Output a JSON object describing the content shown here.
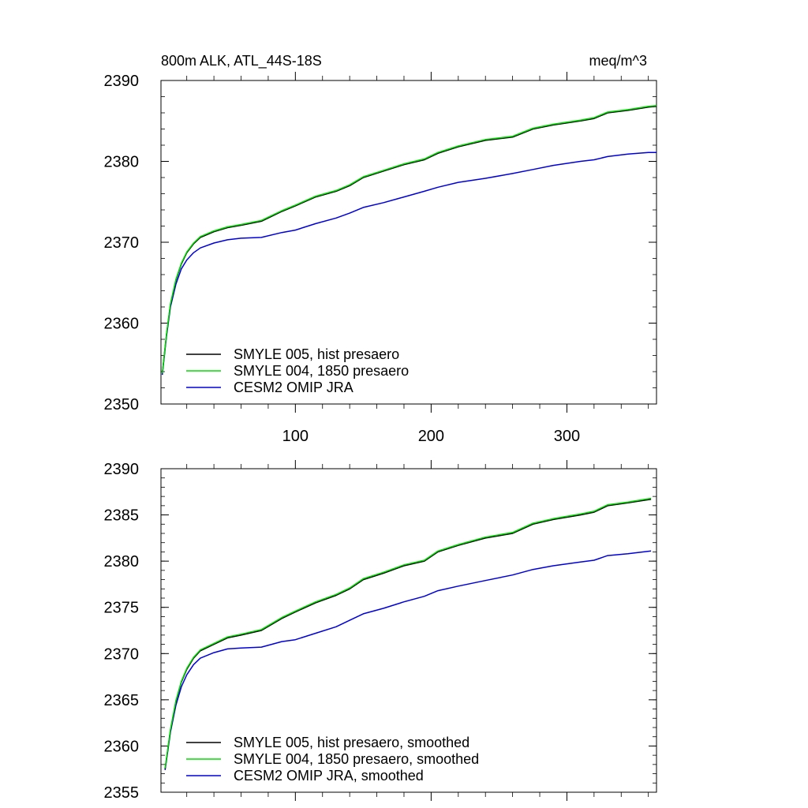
{
  "header": {
    "left": "800m ALK, ATL_44S-18S",
    "right": "meq/m^3"
  },
  "colors": {
    "SMYLE 005": "#000000",
    "SMYLE 004": "#00dd00",
    "CESM2": "#0000dd"
  },
  "chart_data": [
    {
      "type": "line",
      "title": "800m ALK, ATL_44S-18S",
      "unit": "meq/m^3",
      "xlim": [
        1,
        366
      ],
      "ylim": [
        2350,
        2390
      ],
      "xticks": [
        100,
        200,
        300
      ],
      "xtick_labels": [
        "100",
        "200",
        "300"
      ],
      "yticks": [
        2350,
        2360,
        2370,
        2380,
        2390
      ],
      "ytick_labels": [
        "2350",
        "2360",
        "2370",
        "2380",
        "2390"
      ],
      "legend_position": "bottom-left",
      "grid": false,
      "series": [
        {
          "name": "SMYLE 005, hist presaero",
          "color": "#000000",
          "x": [
            2,
            5,
            8,
            12,
            16,
            20,
            25,
            30,
            40,
            50,
            60,
            75,
            90,
            100,
            115,
            130,
            140,
            150,
            165,
            180,
            195,
            205,
            220,
            240,
            260,
            275,
            290,
            310,
            320,
            330,
            345,
            360,
            366
          ],
          "values": [
            2353.8,
            2358.5,
            2362.3,
            2365.3,
            2367.3,
            2368.7,
            2369.8,
            2370.6,
            2371.3,
            2371.8,
            2372.1,
            2372.6,
            2373.8,
            2374.5,
            2375.6,
            2376.3,
            2377.0,
            2378.0,
            2378.8,
            2379.6,
            2380.2,
            2381.0,
            2381.8,
            2382.6,
            2383.0,
            2384.0,
            2384.5,
            2385.0,
            2385.3,
            2386.0,
            2386.3,
            2386.7,
            2386.8
          ]
        },
        {
          "name": "SMYLE 004, 1850 presaero",
          "color": "#00dd00",
          "x": [
            2,
            5,
            8,
            12,
            16,
            20,
            25,
            30,
            40,
            50,
            60,
            75,
            90,
            100,
            115,
            130,
            140,
            150,
            165,
            180,
            195,
            205,
            220,
            240,
            260,
            275,
            290,
            310,
            320,
            330,
            345,
            360,
            366
          ],
          "values": [
            2353.8,
            2358.6,
            2362.4,
            2365.4,
            2367.4,
            2368.8,
            2369.9,
            2370.7,
            2371.4,
            2371.9,
            2372.2,
            2372.7,
            2373.9,
            2374.6,
            2375.7,
            2376.4,
            2377.1,
            2378.1,
            2378.9,
            2379.7,
            2380.3,
            2381.1,
            2381.9,
            2382.7,
            2383.1,
            2384.1,
            2384.6,
            2385.1,
            2385.4,
            2386.1,
            2386.4,
            2386.8,
            2386.9
          ]
        },
        {
          "name": "CESM2 OMIP JRA",
          "color": "#0000dd",
          "x": [
            2,
            5,
            8,
            12,
            16,
            20,
            25,
            30,
            40,
            50,
            60,
            75,
            90,
            100,
            115,
            130,
            140,
            150,
            165,
            180,
            195,
            205,
            220,
            240,
            260,
            275,
            290,
            310,
            320,
            330,
            345,
            360,
            366
          ],
          "values": [
            2353.6,
            2358.3,
            2362.0,
            2364.8,
            2366.7,
            2367.8,
            2368.7,
            2369.3,
            2369.9,
            2370.3,
            2370.5,
            2370.6,
            2371.2,
            2371.5,
            2372.3,
            2373.0,
            2373.6,
            2374.3,
            2374.9,
            2375.6,
            2376.3,
            2376.8,
            2377.4,
            2377.9,
            2378.5,
            2379.0,
            2379.5,
            2380.0,
            2380.2,
            2380.6,
            2380.9,
            2381.1,
            2381.1
          ]
        }
      ]
    },
    {
      "type": "line",
      "xlim": [
        1,
        366
      ],
      "ylim": [
        2355,
        2390
      ],
      "xticks": [
        100,
        200,
        300
      ],
      "xtick_labels": [],
      "yticks": [
        2355,
        2360,
        2365,
        2370,
        2375,
        2380,
        2385,
        2390
      ],
      "ytick_labels": [
        "2355",
        "2360",
        "2365",
        "2370",
        "2375",
        "2380",
        "2385",
        "2390"
      ],
      "legend_position": "bottom-left",
      "grid": false,
      "series": [
        {
          "name": "SMYLE 005, hist presaero, smoothed",
          "color": "#000000",
          "x": [
            4,
            8,
            12,
            16,
            20,
            25,
            30,
            40,
            50,
            60,
            75,
            90,
            100,
            115,
            130,
            140,
            150,
            165,
            180,
            195,
            205,
            220,
            240,
            260,
            275,
            290,
            310,
            320,
            330,
            345,
            362
          ],
          "values": [
            2357.5,
            2361.7,
            2364.8,
            2366.9,
            2368.3,
            2369.5,
            2370.3,
            2371.0,
            2371.7,
            2372.0,
            2372.5,
            2373.8,
            2374.5,
            2375.5,
            2376.3,
            2377.0,
            2378.0,
            2378.7,
            2379.5,
            2380.0,
            2381.0,
            2381.7,
            2382.5,
            2383.0,
            2384.0,
            2384.5,
            2385.0,
            2385.3,
            2386.0,
            2386.3,
            2386.7
          ]
        },
        {
          "name": "SMYLE 004, 1850 presaero, smoothed",
          "color": "#00dd00",
          "x": [
            4,
            8,
            12,
            16,
            20,
            25,
            30,
            40,
            50,
            60,
            75,
            90,
            100,
            115,
            130,
            140,
            150,
            165,
            180,
            195,
            205,
            220,
            240,
            260,
            275,
            290,
            310,
            320,
            330,
            345,
            362
          ],
          "values": [
            2357.6,
            2361.8,
            2364.9,
            2367.0,
            2368.4,
            2369.6,
            2370.4,
            2371.1,
            2371.8,
            2372.1,
            2372.6,
            2373.9,
            2374.6,
            2375.6,
            2376.4,
            2377.1,
            2378.1,
            2378.8,
            2379.6,
            2380.1,
            2381.1,
            2381.8,
            2382.6,
            2383.1,
            2384.1,
            2384.6,
            2385.1,
            2385.4,
            2386.1,
            2386.4,
            2386.8
          ]
        },
        {
          "name": "CESM2 OMIP JRA, smoothed",
          "color": "#0000dd",
          "x": [
            4,
            8,
            12,
            16,
            20,
            25,
            30,
            40,
            50,
            60,
            75,
            90,
            100,
            115,
            130,
            140,
            150,
            165,
            180,
            195,
            205,
            220,
            240,
            260,
            275,
            290,
            310,
            320,
            330,
            345,
            362
          ],
          "values": [
            2357.4,
            2361.5,
            2364.4,
            2366.4,
            2367.7,
            2368.8,
            2369.5,
            2370.1,
            2370.5,
            2370.6,
            2370.7,
            2371.3,
            2371.5,
            2372.2,
            2372.9,
            2373.6,
            2374.3,
            2374.9,
            2375.6,
            2376.2,
            2376.8,
            2377.3,
            2377.9,
            2378.5,
            2379.1,
            2379.5,
            2379.9,
            2380.1,
            2380.6,
            2380.8,
            2381.1
          ]
        }
      ]
    }
  ]
}
